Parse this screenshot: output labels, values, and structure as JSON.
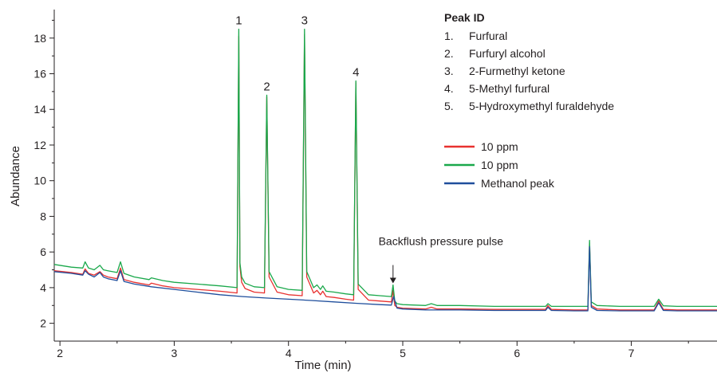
{
  "chart_data": {
    "type": "line",
    "xlabel": "Time (min)",
    "ylabel": "Abundance",
    "xlim": [
      1.95,
      7.75
    ],
    "ylim": [
      1.0,
      19.6
    ],
    "xticks": [
      2,
      3,
      4,
      5,
      6,
      7
    ],
    "yticks": [
      2,
      4,
      6,
      8,
      10,
      12,
      14,
      16,
      18
    ],
    "grid": false,
    "legend_position": "top-right",
    "series": [
      {
        "name": "10 ppm",
        "color": "#e8312f",
        "x": [
          1.95,
          2.1,
          2.2,
          2.22,
          2.25,
          2.3,
          2.35,
          2.38,
          2.42,
          2.5,
          2.53,
          2.56,
          2.65,
          2.78,
          2.8,
          2.9,
          3.0,
          3.2,
          3.4,
          3.55,
          3.565,
          3.575,
          3.59,
          3.62,
          3.7,
          3.79,
          3.81,
          3.83,
          3.9,
          4.0,
          4.12,
          4.14,
          4.16,
          4.22,
          4.25,
          4.28,
          4.3,
          4.33,
          4.4,
          4.5,
          4.57,
          4.59,
          4.61,
          4.7,
          4.8,
          4.9,
          4.915,
          4.93,
          4.95,
          5.0,
          5.2,
          5.25,
          5.3,
          5.5,
          5.8,
          6.0,
          6.25,
          6.27,
          6.3,
          6.5,
          6.62,
          6.635,
          6.65,
          6.7,
          6.9,
          7.2,
          7.24,
          7.28,
          7.4,
          7.75
        ],
        "y": [
          4.95,
          4.85,
          4.75,
          5.05,
          4.8,
          4.7,
          4.9,
          4.7,
          4.6,
          4.5,
          5.1,
          4.45,
          4.3,
          4.15,
          4.25,
          4.1,
          4.0,
          3.9,
          3.8,
          3.7,
          18.1,
          5.2,
          4.3,
          3.95,
          3.75,
          3.7,
          14.7,
          4.6,
          3.75,
          3.6,
          3.55,
          18.2,
          4.6,
          3.7,
          3.85,
          3.6,
          3.8,
          3.5,
          3.45,
          3.35,
          3.3,
          15.5,
          3.9,
          3.3,
          3.25,
          3.2,
          3.85,
          3.0,
          2.9,
          2.85,
          2.8,
          2.9,
          2.8,
          2.8,
          2.78,
          2.78,
          2.78,
          3.0,
          2.78,
          2.75,
          2.75,
          6.5,
          3.0,
          2.8,
          2.75,
          2.75,
          3.25,
          2.78,
          2.75,
          2.75
        ]
      },
      {
        "name": "10 ppm",
        "color": "#1aa84b",
        "x": [
          1.95,
          2.1,
          2.2,
          2.22,
          2.25,
          2.3,
          2.35,
          2.38,
          2.42,
          2.5,
          2.53,
          2.56,
          2.65,
          2.78,
          2.8,
          2.9,
          3.0,
          3.2,
          3.4,
          3.55,
          3.565,
          3.575,
          3.59,
          3.62,
          3.7,
          3.79,
          3.81,
          3.83,
          3.9,
          4.0,
          4.12,
          4.14,
          4.16,
          4.22,
          4.25,
          4.28,
          4.3,
          4.33,
          4.4,
          4.5,
          4.57,
          4.59,
          4.61,
          4.7,
          4.8,
          4.9,
          4.915,
          4.93,
          4.95,
          5.0,
          5.2,
          5.25,
          5.3,
          5.5,
          5.8,
          6.0,
          6.25,
          6.27,
          6.3,
          6.5,
          6.62,
          6.635,
          6.65,
          6.7,
          6.9,
          7.2,
          7.24,
          7.28,
          7.4,
          7.75
        ],
        "y": [
          5.3,
          5.15,
          5.1,
          5.45,
          5.1,
          5.0,
          5.25,
          5.0,
          4.95,
          4.85,
          5.45,
          4.8,
          4.6,
          4.45,
          4.55,
          4.4,
          4.3,
          4.2,
          4.1,
          4.0,
          18.5,
          5.4,
          4.6,
          4.25,
          4.05,
          4.0,
          14.8,
          4.9,
          4.05,
          3.9,
          3.85,
          18.5,
          4.9,
          4.0,
          4.15,
          3.9,
          4.1,
          3.8,
          3.75,
          3.65,
          3.6,
          15.6,
          4.2,
          3.6,
          3.55,
          3.5,
          4.15,
          3.25,
          3.1,
          3.05,
          3.0,
          3.1,
          3.0,
          3.0,
          2.95,
          2.95,
          2.95,
          3.1,
          2.95,
          2.95,
          2.95,
          6.65,
          3.2,
          3.0,
          2.95,
          2.95,
          3.35,
          2.98,
          2.95,
          2.95
        ]
      },
      {
        "name": "Methanol peak",
        "color": "#1f4e9c",
        "x": [
          1.95,
          2.1,
          2.2,
          2.22,
          2.25,
          2.3,
          2.35,
          2.38,
          2.42,
          2.5,
          2.53,
          2.56,
          2.65,
          2.8,
          3.0,
          3.2,
          3.4,
          3.6,
          3.8,
          4.0,
          4.2,
          4.4,
          4.6,
          4.8,
          4.9,
          4.92,
          4.95,
          5.0,
          5.2,
          5.5,
          5.8,
          6.0,
          6.25,
          6.27,
          6.3,
          6.5,
          6.62,
          6.635,
          6.65,
          6.7,
          6.9,
          7.2,
          7.24,
          7.28,
          7.4,
          7.75
        ],
        "y": [
          4.9,
          4.8,
          4.7,
          4.95,
          4.75,
          4.6,
          4.85,
          4.6,
          4.5,
          4.4,
          4.95,
          4.35,
          4.2,
          4.05,
          3.9,
          3.75,
          3.6,
          3.5,
          3.42,
          3.35,
          3.28,
          3.2,
          3.12,
          3.05,
          3.02,
          3.5,
          2.85,
          2.8,
          2.75,
          2.75,
          2.72,
          2.72,
          2.72,
          2.9,
          2.72,
          2.7,
          2.7,
          6.3,
          2.9,
          2.72,
          2.7,
          2.7,
          3.15,
          2.72,
          2.7,
          2.7
        ]
      }
    ],
    "peak_labels": [
      {
        "text": "1",
        "x": 3.565,
        "y": 18.5
      },
      {
        "text": "2",
        "x": 3.81,
        "y": 14.8
      },
      {
        "text": "3",
        "x": 4.14,
        "y": 18.5
      },
      {
        "text": "4",
        "x": 4.59,
        "y": 15.6
      }
    ],
    "annotation": {
      "text": "Backflush pressure pulse",
      "x": 4.915,
      "y": 4.15
    },
    "peak_id": {
      "title": "Peak ID",
      "items": [
        {
          "num": "1.",
          "name": "Furfural"
        },
        {
          "num": "2.",
          "name": "Furfuryl alcohol"
        },
        {
          "num": "3.",
          "name": "2-Furmethyl ketone"
        },
        {
          "num": "4.",
          "name": "5-Methyl furfural"
        },
        {
          "num": "5.",
          "name": "5-Hydroxymethyl furaldehyde"
        }
      ]
    },
    "legend": [
      {
        "label": "10 ppm",
        "color": "#e8312f"
      },
      {
        "label": "10 ppm",
        "color": "#1aa84b"
      },
      {
        "label": "Methanol peak",
        "color": "#1f4e9c"
      }
    ]
  }
}
